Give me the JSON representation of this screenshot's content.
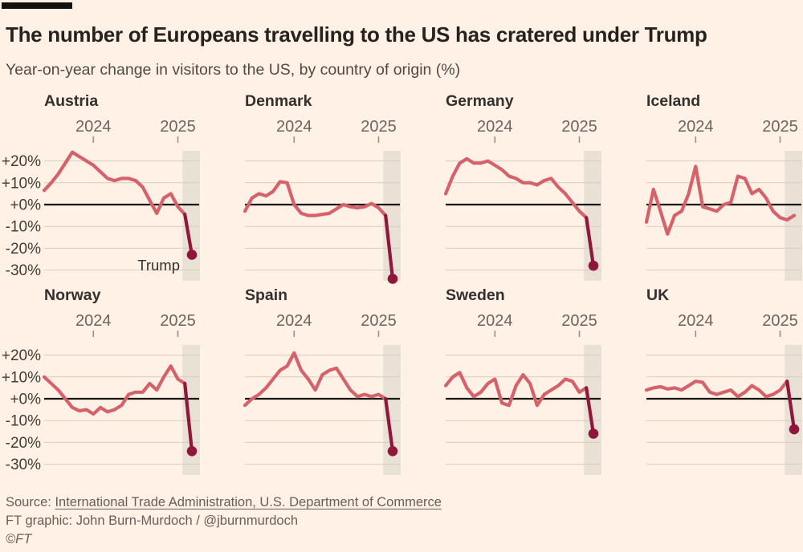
{
  "header": {
    "title": "The number of Europeans travelling to the US has cratered under Trump",
    "subtitle": "Year-on-year change in visitors to the US, by country of origin (%)"
  },
  "chart_data": {
    "type": "line",
    "layout": {
      "rows": 2,
      "cols": 4,
      "grid": "on",
      "shared_axes": true
    },
    "x_ticks": [
      {
        "label": "2024",
        "index": 7
      },
      {
        "label": "2025",
        "index": 19
      }
    ],
    "y_ticks": [
      {
        "label": "+20%",
        "value": 20
      },
      {
        "label": "+10%",
        "value": 10
      },
      {
        "label": "+0%",
        "value": 0
      },
      {
        "label": "-10%",
        "value": -10
      },
      {
        "label": "-20%",
        "value": -20
      },
      {
        "label": "-30%",
        "value": -30
      }
    ],
    "ylim": [
      -34,
      25
    ],
    "band": {
      "from": 19.65,
      "to": 22.15,
      "meaning": "Trump period highlight"
    },
    "series": [
      {
        "name": "Austria",
        "show_y_axis": true,
        "values": [
          6.5,
          10,
          14,
          19,
          24,
          22,
          20,
          18,
          15,
          12,
          11,
          12,
          12,
          11,
          8,
          2,
          -4,
          3,
          5,
          -1,
          -4.5,
          -23
        ],
        "plunge_from_index": 20,
        "end_dot": true,
        "end_value": -23,
        "annotation": "Trump"
      },
      {
        "name": "Denmark",
        "show_y_axis": false,
        "values": [
          -3,
          3,
          5,
          4,
          6,
          10.5,
          10,
          0,
          -4,
          -5,
          -5,
          -4.5,
          -4,
          -2,
          0,
          -1,
          -1.5,
          -1,
          0.5,
          -1.5,
          -5,
          -34
        ],
        "plunge_from_index": 20,
        "end_dot": true,
        "end_value": -34,
        "annotation": null
      },
      {
        "name": "Germany",
        "show_y_axis": false,
        "values": [
          5,
          13,
          19,
          21,
          19,
          19,
          20,
          18,
          16,
          13,
          12,
          10,
          10,
          9,
          11,
          12,
          8,
          5,
          1,
          -3,
          -6,
          -28
        ],
        "plunge_from_index": 20,
        "end_dot": true,
        "end_value": -28,
        "annotation": null
      },
      {
        "name": "Iceland",
        "show_y_axis": false,
        "values": [
          -8,
          7,
          -3,
          -13.5,
          -5,
          -3,
          5,
          17.5,
          -1,
          -2,
          -3,
          0,
          1,
          13,
          12,
          5,
          7,
          3,
          -3,
          -6,
          -7,
          -5
        ],
        "plunge_from_index": null,
        "end_dot": false,
        "end_value": -5,
        "annotation": null
      },
      {
        "name": "Norway",
        "show_y_axis": true,
        "values": [
          10,
          7,
          4,
          0,
          -4,
          -5.5,
          -5,
          -7,
          -4,
          -6,
          -5,
          -3,
          2,
          3,
          3,
          7,
          4,
          10,
          15,
          9,
          7,
          -24
        ],
        "plunge_from_index": 20,
        "end_dot": true,
        "end_value": -24,
        "annotation": null
      },
      {
        "name": "Spain",
        "show_y_axis": false,
        "values": [
          -3,
          0,
          2,
          5,
          9,
          13,
          15,
          21,
          13,
          9,
          4,
          11,
          13,
          14,
          9,
          4,
          1,
          2,
          1,
          2,
          0,
          -24
        ],
        "plunge_from_index": 20,
        "end_dot": true,
        "end_value": -24,
        "annotation": null
      },
      {
        "name": "Sweden",
        "show_y_axis": false,
        "values": [
          6,
          10,
          12,
          5,
          1,
          3,
          7,
          9,
          -2,
          -3,
          6,
          11,
          7,
          -3,
          2,
          4,
          6,
          9,
          8,
          3,
          5,
          -16
        ],
        "plunge_from_index": 20,
        "end_dot": true,
        "end_value": -16,
        "annotation": null
      },
      {
        "name": "UK",
        "show_y_axis": false,
        "values": [
          4,
          5,
          5.5,
          4.5,
          5,
          4,
          6,
          8,
          7.5,
          3,
          2,
          3,
          4,
          1,
          3,
          6,
          4,
          1,
          2,
          4,
          8,
          -14
        ],
        "plunge_from_index": 20,
        "end_dot": true,
        "end_value": -14,
        "annotation": null
      }
    ],
    "colors": {
      "background": "#FFF1E5",
      "line": "#D5626A",
      "plunge": "#90173C",
      "zero_line": "#1A1817",
      "gridline": "#D9CBBD",
      "band": "#E9E0D6",
      "tick": "#9A9189",
      "text_dark": "#33302E",
      "text_muted": "#6B645F"
    }
  },
  "footer": {
    "source_prefix": "Source: ",
    "source_link": "International Trade Administration, U.S. Department of Commerce",
    "credit": "FT graphic: John Burn-Murdoch / @jburnmurdoch",
    "copyright": "©FT"
  }
}
